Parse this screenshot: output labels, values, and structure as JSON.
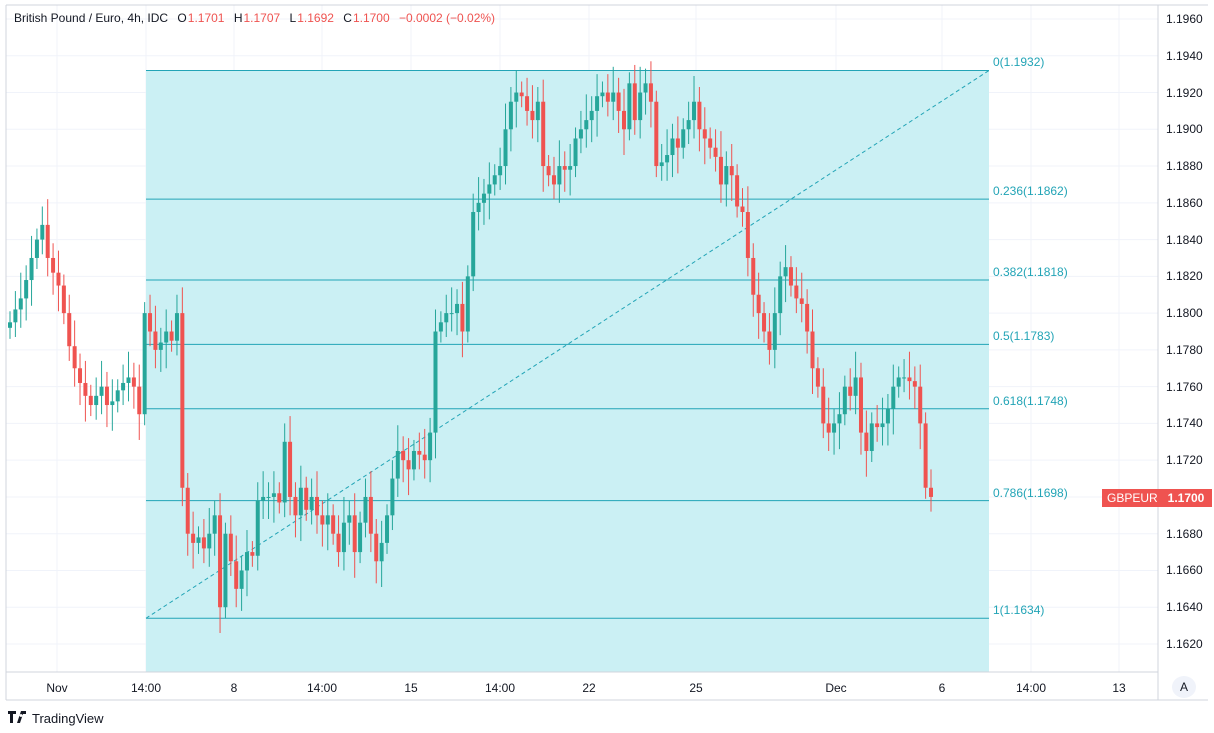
{
  "legend": {
    "title": "British Pound / Euro, 4h, IDC",
    "open_label": "O",
    "open_value": "1.1701",
    "high_label": "H",
    "high_value": "1.1707",
    "low_label": "L",
    "low_value": "1.1692",
    "close_label": "C",
    "close_value": "1.1700",
    "change": "−0.0002 (−0.02%)"
  },
  "price_axis": {
    "labels": [
      "1.1960",
      "1.1940",
      "1.1920",
      "1.1900",
      "1.1880",
      "1.1860",
      "1.1840",
      "1.1820",
      "1.1800",
      "1.1780",
      "1.1760",
      "1.1740",
      "1.1720",
      "1.1700",
      "1.1680",
      "1.1660",
      "1.1640",
      "1.1620"
    ],
    "last_price": "1.1700",
    "ticker": "GBPEUR"
  },
  "time_axis": {
    "labels": [
      "Nov",
      "14:00",
      "8",
      "14:00",
      "15",
      "14:00",
      "22",
      "25",
      "Dec",
      "6",
      "14:00",
      "13"
    ]
  },
  "fib_labels": [
    "0(1.1932)",
    "0.236(1.1862)",
    "0.382(1.1818)",
    "0.5(1.1783)",
    "0.618(1.1748)",
    "0.786(1.1698)",
    "1(1.1634)"
  ],
  "axis_button": "A",
  "brand": "TradingView",
  "colors": {
    "up": "#26a69a",
    "down": "#ef5350",
    "fib": "#22a4b6",
    "fib_fill": "#cbf0f4",
    "grid": "#f0f3fa"
  },
  "chart_data": {
    "type": "candlestick",
    "symbol": "GBPEUR",
    "interval": "4h",
    "ylim": [
      1.161,
      1.197
    ],
    "fibonacci": {
      "levels": [
        0,
        0.236,
        0.382,
        0.5,
        0.618,
        0.786,
        1
      ],
      "prices": [
        1.1932,
        1.1862,
        1.1818,
        1.1783,
        1.1748,
        1.1698,
        1.1634
      ]
    },
    "close": [
      1.1795,
      1.1802,
      1.1808,
      1.1818,
      1.183,
      1.184,
      1.1848,
      1.183,
      1.1822,
      1.1815,
      1.18,
      1.1782,
      1.177,
      1.1762,
      1.1755,
      1.175,
      1.1755,
      1.176,
      1.175,
      1.1752,
      1.1758,
      1.1762,
      1.1765,
      1.176,
      1.1745,
      1.18,
      1.179,
      1.178,
      1.1784,
      1.179,
      1.1785,
      1.18,
      1.1705,
      1.168,
      1.1675,
      1.1678,
      1.1672,
      1.168,
      1.169,
      1.164,
      1.168,
      1.1665,
      1.165,
      1.166,
      1.167,
      1.1668,
      1.1698,
      1.17,
      1.17,
      1.1702,
      1.1697,
      1.173,
      1.17,
      1.169,
      1.1705,
      1.1693,
      1.17,
      1.169,
      1.1685,
      1.169,
      1.168,
      1.167,
      1.1686,
      1.169,
      1.167,
      1.1686,
      1.17,
      1.168,
      1.1665,
      1.1675,
      1.169,
      1.171,
      1.1725,
      1.172,
      1.1715,
      1.1725,
      1.1723,
      1.172,
      1.1735,
      1.179,
      1.1795,
      1.18,
      1.18,
      1.1805,
      1.179,
      1.182,
      1.1855,
      1.186,
      1.1865,
      1.187,
      1.1875,
      1.188,
      1.19,
      1.1915,
      1.192,
      1.1918,
      1.191,
      1.1905,
      1.1915,
      1.188,
      1.1875,
      1.187,
      1.188,
      1.1878,
      1.188,
      1.1895,
      1.19,
      1.1905,
      1.191,
      1.1918,
      1.192,
      1.1915,
      1.192,
      1.191,
      1.19,
      1.1925,
      1.1905,
      1.192,
      1.1925,
      1.1915,
      1.188,
      1.1882,
      1.1886,
      1.1895,
      1.189,
      1.19,
      1.1905,
      1.1915,
      1.19,
      1.1895,
      1.189,
      1.1885,
      1.187,
      1.188,
      1.1875,
      1.1858,
      1.1855,
      1.183,
      1.181,
      1.18,
      1.179,
      1.178,
      1.18,
      1.182,
      1.1825,
      1.1815,
      1.1808,
      1.1805,
      1.179,
      1.177,
      1.176,
      1.174,
      1.1735,
      1.174,
      1.1745,
      1.176,
      1.1755,
      1.1765,
      1.1735,
      1.1725,
      1.174,
      1.1738,
      1.174,
      1.1748,
      1.176,
      1.1765,
      1.1765,
      1.1763,
      1.176,
      1.174,
      1.1705,
      1.17
    ]
  }
}
